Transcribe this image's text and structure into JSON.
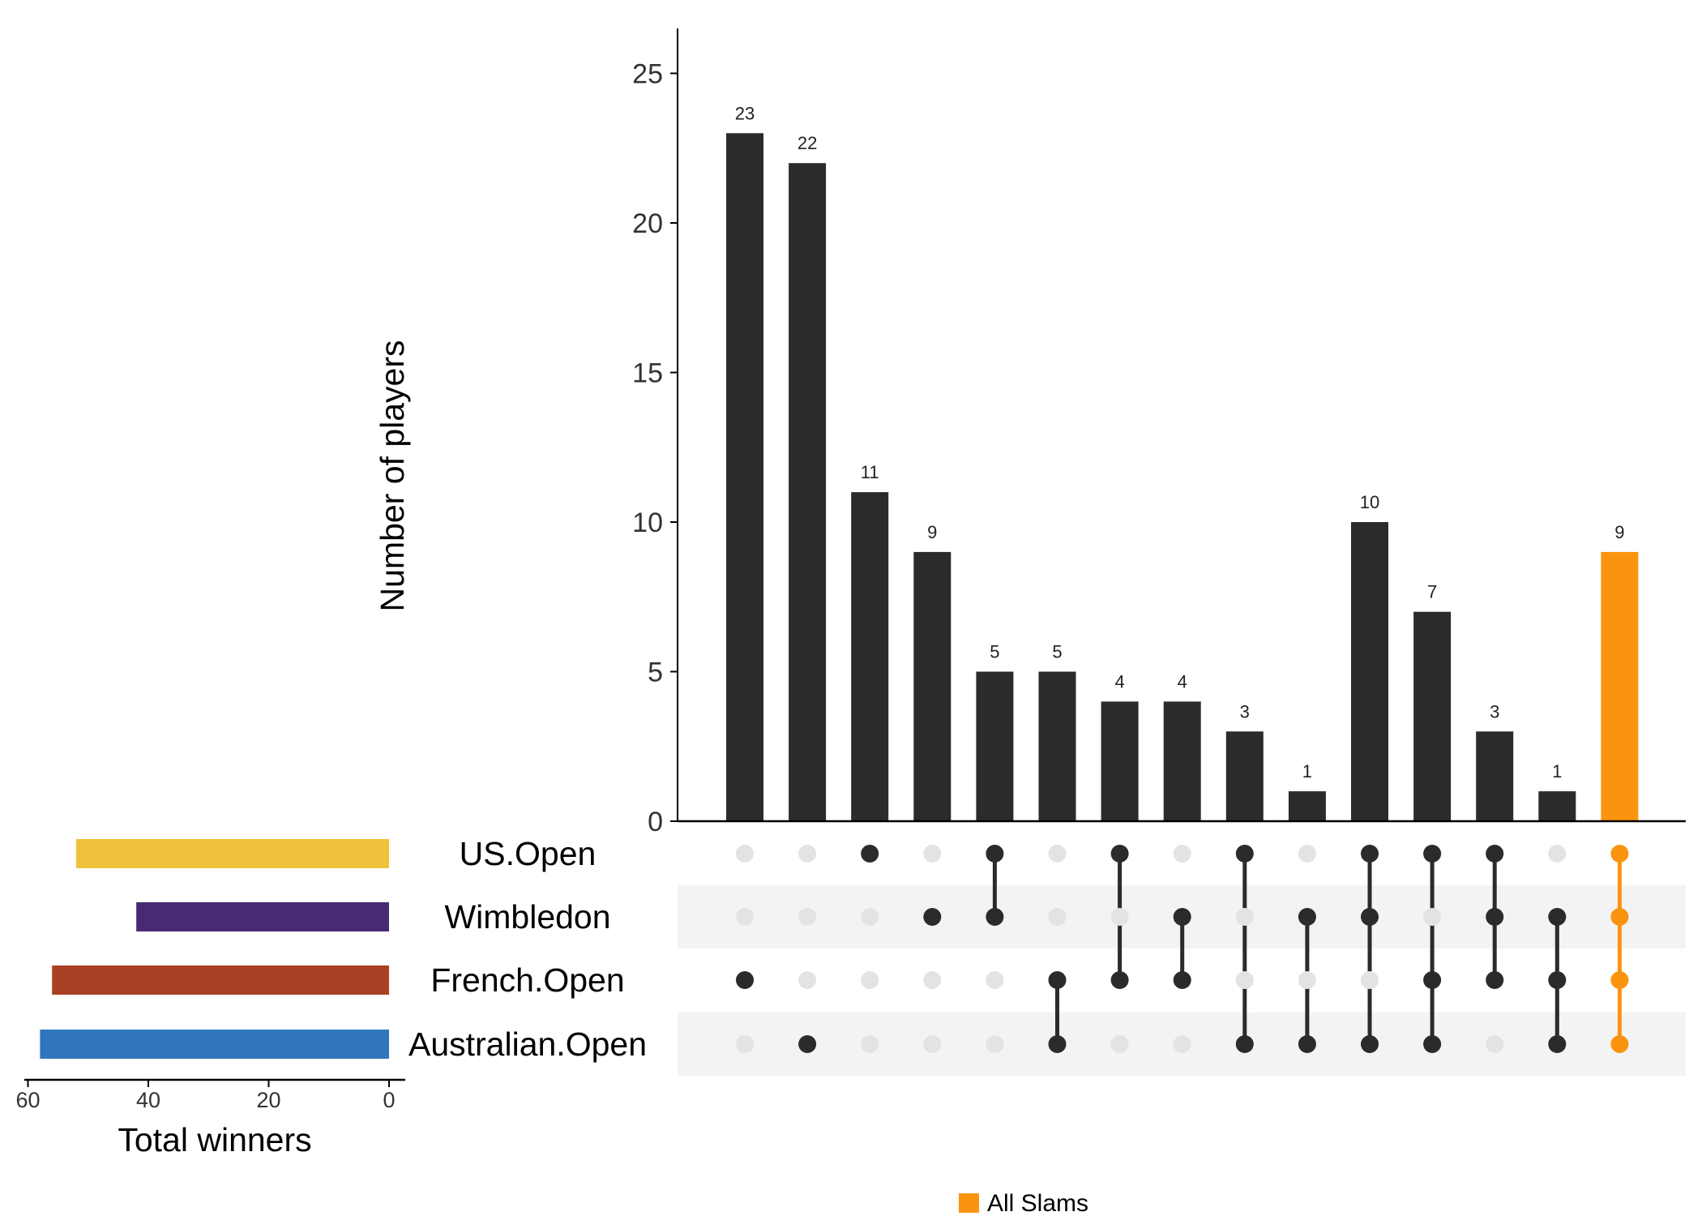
{
  "chart_data": {
    "type": "bar",
    "subtype": "upset",
    "ylabel": "Number of players",
    "yticks": [
      0,
      5,
      10,
      15,
      20,
      25
    ],
    "ylim": [
      0,
      26.5
    ],
    "sets": [
      "US.Open",
      "Wimbledon",
      "French.Open",
      "Australian.Open"
    ],
    "set_colors": [
      "#eec33b",
      "#462a72",
      "#aa4023",
      "#2f76bd"
    ],
    "set_sizes": [
      52,
      42,
      56,
      58
    ],
    "set_size_label": "Total winners",
    "set_size_ticks": [
      60,
      40,
      20,
      0
    ],
    "set_size_xlim": [
      60,
      0
    ],
    "intersections": [
      {
        "value": 23,
        "members": [
          "French.Open"
        ]
      },
      {
        "value": 22,
        "members": [
          "Australian.Open"
        ]
      },
      {
        "value": 11,
        "members": [
          "US.Open"
        ]
      },
      {
        "value": 9,
        "members": [
          "Wimbledon"
        ]
      },
      {
        "value": 5,
        "members": [
          "US.Open",
          "Wimbledon"
        ]
      },
      {
        "value": 5,
        "members": [
          "French.Open",
          "Australian.Open"
        ]
      },
      {
        "value": 4,
        "members": [
          "US.Open",
          "French.Open"
        ]
      },
      {
        "value": 4,
        "members": [
          "Wimbledon",
          "French.Open"
        ]
      },
      {
        "value": 3,
        "members": [
          "US.Open",
          "Australian.Open"
        ]
      },
      {
        "value": 1,
        "members": [
          "Wimbledon",
          "Australian.Open"
        ]
      },
      {
        "value": 10,
        "members": [
          "US.Open",
          "Wimbledon",
          "Australian.Open"
        ]
      },
      {
        "value": 7,
        "members": [
          "US.Open",
          "French.Open",
          "Australian.Open"
        ]
      },
      {
        "value": 3,
        "members": [
          "US.Open",
          "Wimbledon",
          "French.Open"
        ]
      },
      {
        "value": 1,
        "members": [
          "Wimbledon",
          "French.Open",
          "Australian.Open"
        ]
      },
      {
        "value": 9,
        "members": [
          "US.Open",
          "Wimbledon",
          "French.Open",
          "Australian.Open"
        ],
        "highlight": true
      }
    ],
    "bar_color": "#2b2b2b",
    "highlight_color": "#fa940f",
    "inactive_dot_color": "#e3e3e3",
    "stripe_color": "#f3f3f3",
    "legend": {
      "label": "All Slams",
      "color": "#fa940f",
      "position": "bottom"
    }
  }
}
